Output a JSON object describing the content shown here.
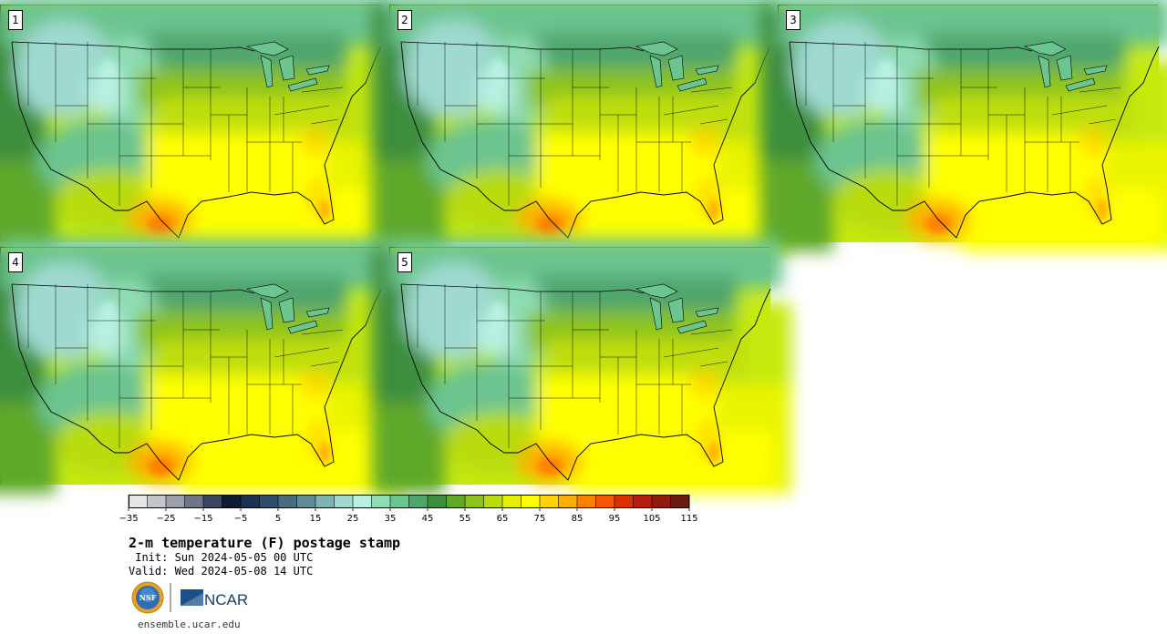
{
  "panels": [
    "1",
    "2",
    "3",
    "4",
    "5"
  ],
  "colorbar": {
    "colors": [
      "#e6e6e6",
      "#c2c6cc",
      "#9aa0ab",
      "#6e7789",
      "#3a4660",
      "#0f1b33",
      "#1d3150",
      "#2f4d6b",
      "#476b80",
      "#5f8b95",
      "#7db3b3",
      "#9fd9d0",
      "#b8f0e2",
      "#8fdcb5",
      "#6cc48f",
      "#4fa66d",
      "#3c8e3c",
      "#5fa82a",
      "#8cc21a",
      "#b8dc0e",
      "#e4f000",
      "#ffff00",
      "#ffd400",
      "#ffad00",
      "#ff8000",
      "#f45500",
      "#d93000",
      "#b71c10",
      "#8f1a10",
      "#6a1a10"
    ],
    "tick_labels": [
      "−35",
      "−25",
      "−15",
      "−5",
      "5",
      "15",
      "25",
      "35",
      "45",
      "55",
      "65",
      "75",
      "85",
      "95",
      "105",
      "115"
    ]
  },
  "title": "2-m temperature (F) postage stamp",
  "init_line": " Init: Sun 2024-05-05 00 UTC",
  "valid_line": "Valid: Wed 2024-05-08 14 UTC",
  "logos": {
    "nsf_label": "NSF",
    "ncar_label": "NCAR"
  },
  "url": "ensemble.ucar.edu"
}
